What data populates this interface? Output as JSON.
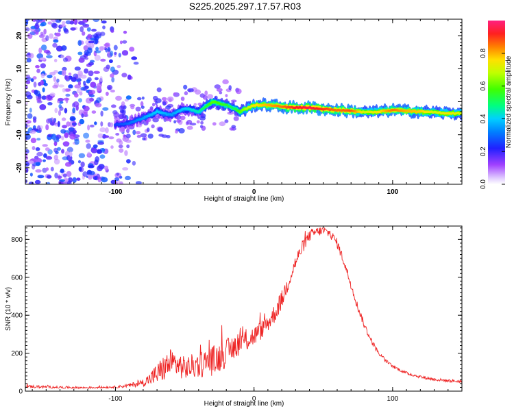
{
  "title": "S225.2025.297.17.57.R03",
  "colors": {
    "line": "#ee2222",
    "frame": "#000000",
    "spectrum_background_dots": "#8a2be2",
    "ridge_peak": "#ff1f3a"
  },
  "chart_data": [
    {
      "type": "heatmap",
      "title": "S225.2025.297.17.57.R03",
      "xlabel": "Height of straight line (km)",
      "ylabel": "Frequency (Hz)",
      "xlim": [
        -165,
        150
      ],
      "ylim": [
        -25,
        25
      ],
      "xticks": [
        -100,
        0,
        100
      ],
      "yticks": [
        -20,
        -10,
        0,
        10,
        20
      ],
      "colorbar": {
        "label": "Normalized spectral amplitude",
        "range": [
          0.0,
          1.0
        ],
        "ticks": [
          0.0,
          0.2,
          0.4,
          0.6,
          0.8
        ],
        "colormap": "rainbow (violet-blue-cyan-green-yellow-red-magenta)"
      },
      "ridge": {
        "description": "Dominant frequency track vs height",
        "x": [
          -100,
          -90,
          -80,
          -70,
          -60,
          -50,
          -40,
          -30,
          -20,
          -15,
          -10,
          0,
          10,
          20,
          30,
          40,
          50,
          60,
          70,
          80,
          90,
          100,
          110,
          120,
          130,
          140,
          150
        ],
        "frequency": [
          -7,
          -6.5,
          -5,
          -3,
          -4,
          -2,
          -3,
          0,
          -1,
          -2,
          -3,
          -1,
          -1,
          -1.5,
          -1.8,
          -1.8,
          -2.2,
          -2.5,
          -2.8,
          -3.2,
          -3,
          -2.5,
          -2.8,
          -3,
          -3.2,
          -3.5,
          -3.5
        ],
        "amplitude": [
          0.25,
          0.3,
          0.35,
          0.4,
          0.35,
          0.4,
          0.45,
          0.6,
          0.55,
          0.5,
          0.6,
          0.75,
          0.8,
          0.85,
          0.92,
          0.95,
          0.9,
          0.85,
          0.88,
          0.7,
          0.75,
          0.85,
          0.8,
          0.78,
          0.7,
          0.75,
          0.7
        ]
      },
      "noise_region": {
        "x_range": [
          -165,
          -80
        ],
        "frequency_range": [
          -25,
          25
        ],
        "amplitude_range": [
          0.05,
          0.3
        ]
      }
    },
    {
      "type": "line",
      "xlabel": "Height of straight line (km)",
      "ylabel": "SNR (10 * v/v)",
      "xlim": [
        -165,
        150
      ],
      "ylim": [
        0,
        870
      ],
      "xticks": [
        -100,
        0,
        100
      ],
      "yticks": [
        0,
        200,
        400,
        600,
        800
      ],
      "series": [
        {
          "name": "SNR",
          "x": [
            -165,
            -140,
            -120,
            -100,
            -90,
            -80,
            -75,
            -70,
            -65,
            -60,
            -55,
            -50,
            -45,
            -40,
            -35,
            -30,
            -25,
            -20,
            -15,
            -10,
            -5,
            0,
            5,
            10,
            15,
            20,
            25,
            30,
            35,
            40,
            45,
            50,
            55,
            60,
            65,
            70,
            75,
            80,
            85,
            90,
            95,
            100,
            110,
            120,
            130,
            140,
            150
          ],
          "y": [
            25,
            20,
            18,
            22,
            30,
            45,
            65,
            90,
            120,
            150,
            140,
            120,
            130,
            140,
            150,
            160,
            180,
            200,
            230,
            260,
            270,
            290,
            320,
            360,
            410,
            480,
            580,
            680,
            760,
            820,
            840,
            845,
            830,
            780,
            680,
            560,
            440,
            340,
            260,
            200,
            160,
            130,
            95,
            75,
            62,
            55,
            50
          ],
          "noise_amplitude": [
            8,
            6,
            5,
            6,
            10,
            20,
            35,
            60,
            70,
            75,
            70,
            60,
            65,
            70,
            75,
            80,
            80,
            75,
            70,
            65,
            60,
            55,
            50,
            50,
            50,
            50,
            45,
            40,
            35,
            30,
            25,
            25,
            25,
            25,
            25,
            22,
            20,
            18,
            15,
            12,
            10,
            8,
            8,
            8,
            8,
            8,
            8
          ]
        }
      ]
    }
  ]
}
